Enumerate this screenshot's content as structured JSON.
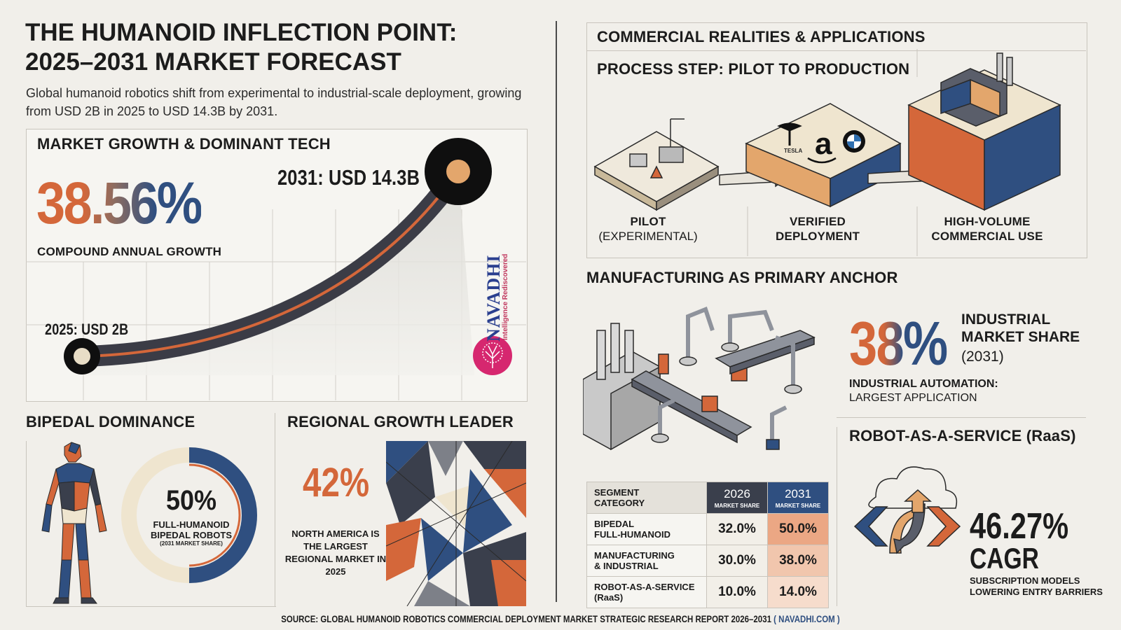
{
  "title": {
    "line1": "THE HUMANOID INFLECTION POINT:",
    "line2": "2025–2031 MARKET FORECAST",
    "subtitle": "Global humanoid robotics shift from experimental to industrial-scale deployment, growing from USD 2B in 2025 to USD 14.3B by 2031."
  },
  "growth": {
    "title": "MARKET GROWTH & DOMINANT TECH",
    "cagr_value": "38.56%",
    "cagr_label": "COMPOUND ANNUAL GROWTH",
    "start_label": "2025: USD 2B",
    "end_label": "2031: USD 14.3B",
    "start_value": 2,
    "end_value": 14.3
  },
  "logo": {
    "name": "NAVADHI",
    "tagline": "Intelligence Rediscovered"
  },
  "bipedal": {
    "title": "BIPEDAL DOMINANCE",
    "value": "50%",
    "label": "FULL-HUMANOID BIPEDAL ROBOTS",
    "sublabel": "(2031 MARKET SHARE)",
    "share_fraction": 0.5
  },
  "region": {
    "title": "REGIONAL GROWTH LEADER",
    "value": "42%",
    "text": "NORTH AMERICA IS THE LARGEST REGIONAL MARKET IN 2025"
  },
  "commercial": {
    "title": "COMMERCIAL REALITIES & APPLICATIONS",
    "process_title": "PROCESS STEP: PILOT TO PRODUCTION",
    "steps": [
      {
        "line1": "PILOT",
        "line2": "(EXPERIMENTAL)"
      },
      {
        "line1": "VERIFIED",
        "line2": "DEPLOYMENT"
      },
      {
        "line1": "HIGH-VOLUME",
        "line2": "COMMERCIAL USE"
      }
    ],
    "brand_tesla": "TESLA",
    "brand_amazon": "a",
    "brand_bmw": "BMW"
  },
  "manufacturing": {
    "title": "MANUFACTURING AS PRIMARY ANCHOR",
    "value": "38%",
    "label_line1": "INDUSTRIAL",
    "label_line2": "MARKET SHARE",
    "year": "(2031)",
    "note_line1": "INDUSTRIAL AUTOMATION:",
    "note_line2": "LARGEST APPLICATION"
  },
  "table": {
    "header_category_line1": "SEGMENT",
    "header_category_line2": "CATEGORY",
    "header_2026": "2026",
    "header_2031": "2031",
    "header_sub": "MARKET SHARE",
    "rows": [
      {
        "line1": "BIPEDAL",
        "line2": "FULL-HUMANOID",
        "v2026": "32.0%",
        "v2031": "50.0%"
      },
      {
        "line1": "MANUFACTURING",
        "line2": "& INDUSTRIAL",
        "v2026": "30.0%",
        "v2031": "38.0%"
      },
      {
        "line1": "ROBOT-AS-A-SERVICE",
        "line2": "(RaaS)",
        "v2026": "10.0%",
        "v2031": "14.0%"
      }
    ]
  },
  "raas": {
    "title": "ROBOT-AS-A-SERVICE (RaaS)",
    "value": "46.27%",
    "cagr": "CAGR",
    "note_line1": "SUBSCRIPTION MODELS",
    "note_line2": "LOWERING ENTRY BARRIERS"
  },
  "source": {
    "text": "SOURCE: GLOBAL HUMANOID ROBOTICS COMMERCIAL DEPLOYMENT MARKET STRATEGIC RESEARCH REPORT 2026–2031",
    "link": "( NAVADHI.COM )"
  },
  "colors": {
    "orange": "#d4673a",
    "navy": "#2f4f80",
    "dark": "#2e2f36",
    "cream": "#efe5cf",
    "accent_pink": "#d6276f"
  }
}
